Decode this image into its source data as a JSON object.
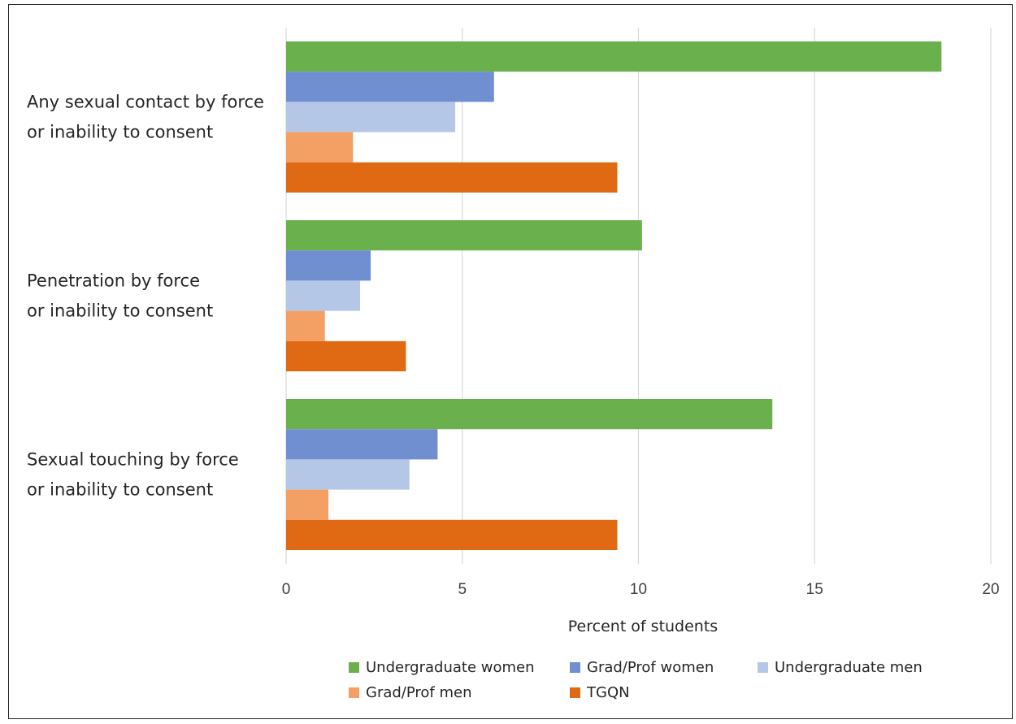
{
  "chart_data": {
    "type": "bar",
    "orientation": "horizontal",
    "categories": [
      [
        "Any sexual contact by force",
        "or inability to consent"
      ],
      [
        "Penetration by force",
        "or inability to consent"
      ],
      [
        "Sexual touching by force",
        "or inability to consent"
      ]
    ],
    "series": [
      {
        "name": "Undergraduate women",
        "color": "#6AB04C",
        "values": [
          18.6,
          10.1,
          13.8
        ]
      },
      {
        "name": "Grad/Prof women",
        "color": "#6F8FD1",
        "values": [
          5.9,
          2.4,
          4.3
        ]
      },
      {
        "name": "Undergraduate men",
        "color": "#B4C7E7",
        "values": [
          4.8,
          2.1,
          3.5
        ]
      },
      {
        "name": "Grad/Prof men",
        "color": "#F4A064",
        "values": [
          1.9,
          1.1,
          1.2
        ]
      },
      {
        "name": "TGQN",
        "color": "#E06A14",
        "values": [
          9.4,
          3.4,
          9.4
        ]
      }
    ],
    "xlabel": "Percent of students",
    "xlim": [
      0,
      20
    ],
    "xticks": [
      "0",
      "5",
      "10",
      "15",
      "20"
    ],
    "grid": "vertical",
    "legend_position": "bottom",
    "legend_rows": [
      [
        "Undergraduate women",
        "Grad/Prof women",
        "Undergraduate men"
      ],
      [
        "Grad/Prof men",
        "TGQN"
      ]
    ]
  }
}
